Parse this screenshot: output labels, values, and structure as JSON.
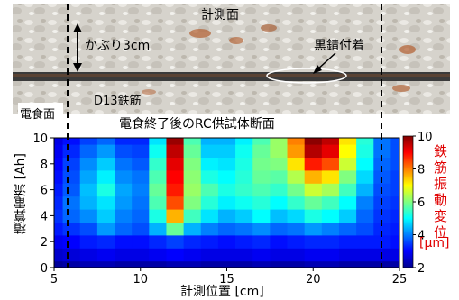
{
  "photo": {
    "measurement_plane_label": "計測面",
    "cover_label": "かぶり3cm",
    "black_rust_label": "黒錆付着",
    "corrosion_face_label": "電食面",
    "rebar_label": "D13鉄筋",
    "caption": "電食終了後のRC供試体断面",
    "colors": {
      "concrete": "#d9d6cf",
      "rebar": "#3b3b3b",
      "rust": "#b4663a"
    }
  },
  "chart_data": {
    "type": "heatmap",
    "title": "",
    "xlabel": "計測位置 [cm]",
    "ylabel": "積算電流 [Ah]",
    "xlim": [
      5,
      25
    ],
    "ylim": [
      0,
      10
    ],
    "xticks": [
      "5",
      "10",
      "15",
      "20",
      "25"
    ],
    "yticks": [
      "0",
      "2",
      "4",
      "6",
      "8",
      "10"
    ],
    "colorbar": {
      "label": "鉄筋振動変位",
      "unit": "[μm]",
      "min": 2,
      "max": 10,
      "ticks": [
        "2",
        "4",
        "6",
        "8",
        "10"
      ],
      "colormap": "jet"
    },
    "x": [
      5,
      6,
      7,
      8,
      9,
      10,
      11,
      12,
      13,
      14,
      15,
      16,
      17,
      18,
      19,
      20,
      21,
      22,
      23,
      24,
      25
    ],
    "y": [
      0,
      1,
      2,
      3,
      4,
      5,
      6,
      7,
      8,
      9,
      10
    ],
    "z": [
      [
        2.2,
        2.3,
        2.4,
        2.4,
        2.3,
        2.3,
        2.3,
        2.4,
        2.4,
        2.3,
        2.3,
        2.3,
        2.4,
        2.3,
        2.3,
        2.4,
        2.4,
        2.3,
        2.3,
        2.3,
        2.3
      ],
      [
        2.6,
        2.7,
        2.8,
        2.9,
        2.8,
        2.8,
        2.9,
        3.0,
        2.9,
        2.8,
        2.8,
        2.8,
        2.9,
        2.8,
        2.8,
        2.9,
        2.9,
        2.8,
        2.8,
        2.8,
        2.8
      ],
      [
        2.9,
        3.0,
        3.2,
        3.3,
        3.1,
        3.1,
        3.3,
        3.5,
        3.3,
        3.2,
        3.1,
        3.2,
        3.3,
        3.1,
        3.2,
        3.3,
        3.3,
        3.2,
        3.2,
        3.2,
        3.1
      ],
      [
        3.2,
        3.4,
        3.6,
        4.2,
        3.8,
        3.6,
        4.4,
        5.8,
        4.4,
        4.0,
        3.8,
        3.9,
        4.1,
        3.8,
        3.9,
        4.2,
        4.0,
        3.8,
        3.6,
        3.3,
        3.2
      ],
      [
        3.4,
        3.8,
        4.1,
        4.6,
        4.0,
        3.8,
        5.2,
        7.6,
        5.5,
        4.8,
        4.4,
        4.6,
        5.0,
        4.5,
        4.7,
        5.2,
        5.0,
        4.6,
        3.8,
        3.4,
        3.3
      ],
      [
        3.3,
        3.9,
        4.4,
        4.8,
        4.2,
        3.9,
        5.6,
        8.4,
        6.0,
        5.3,
        4.9,
        5.1,
        5.3,
        5.0,
        5.4,
        5.8,
        5.5,
        5.0,
        4.0,
        3.5,
        3.4
      ],
      [
        3.2,
        3.7,
        4.5,
        5.2,
        4.3,
        4.0,
        5.8,
        8.8,
        6.2,
        5.6,
        5.2,
        5.4,
        5.6,
        5.4,
        5.9,
        6.6,
        6.3,
        5.5,
        4.4,
        3.6,
        3.5
      ],
      [
        3.1,
        3.6,
        4.3,
        4.9,
        4.1,
        3.9,
        5.6,
        9.0,
        6.1,
        5.2,
        5.0,
        5.3,
        5.8,
        5.7,
        6.4,
        7.6,
        7.2,
        6.0,
        4.7,
        3.7,
        3.5
      ],
      [
        3.0,
        3.5,
        4.1,
        4.6,
        3.9,
        3.7,
        5.4,
        9.2,
        6.0,
        4.9,
        4.8,
        5.2,
        5.9,
        6.0,
        7.2,
        8.8,
        8.4,
        6.6,
        5.0,
        3.8,
        3.6
      ],
      [
        2.9,
        3.3,
        3.8,
        4.2,
        3.6,
        3.5,
        5.1,
        9.5,
        5.8,
        4.6,
        4.6,
        5.1,
        5.8,
        6.2,
        7.8,
        9.6,
        9.2,
        7.0,
        5.2,
        3.9,
        3.6
      ],
      [
        2.8,
        3.1,
        3.5,
        3.8,
        3.3,
        3.3,
        4.8,
        9.8,
        5.6,
        4.4,
        4.4,
        4.9,
        5.6,
        6.2,
        8.0,
        9.9,
        9.5,
        7.2,
        5.3,
        3.9,
        3.6
      ]
    ],
    "markers": [
      {
        "type": "vline",
        "x": 5,
        "style": "dashed",
        "label": "計測面"
      },
      {
        "type": "vline",
        "x": 25,
        "style": "dashed"
      }
    ]
  }
}
